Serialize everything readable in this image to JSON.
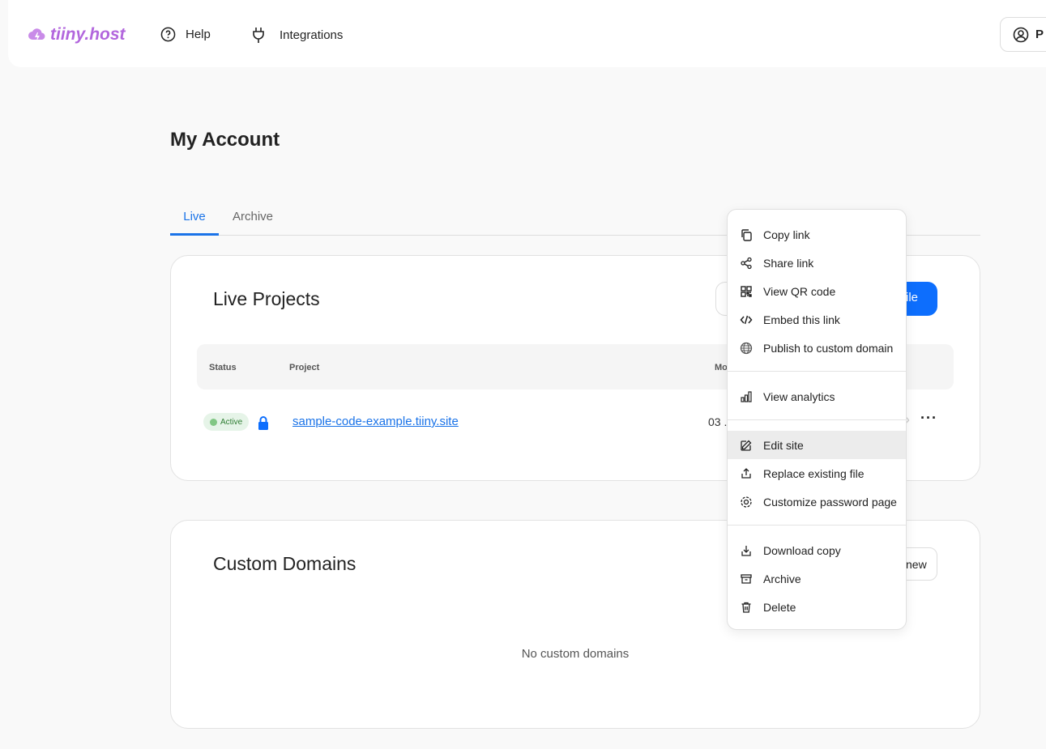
{
  "header": {
    "logo": "tiiny.host",
    "nav": [
      {
        "label": "Help",
        "icon": "help-circle-icon"
      },
      {
        "label": "Integrations",
        "icon": "plug-icon"
      }
    ],
    "profile_initial": "P"
  },
  "page_title": "My Account",
  "tabs": [
    {
      "label": "Live",
      "active": true
    },
    {
      "label": "Archive",
      "active": false
    }
  ],
  "live_projects": {
    "title": "Live Projects",
    "upload_button": "ile",
    "columns": [
      "Status",
      "Project",
      "Mo"
    ],
    "rows": [
      {
        "status": "Active",
        "locked": true,
        "project": "sample-code-example.tiiny.site",
        "modified": "03 ."
      }
    ]
  },
  "custom_domains": {
    "title": "Custom Domains",
    "add_button": "new",
    "empty": "No custom domains"
  },
  "menu": {
    "groups": [
      [
        {
          "label": "Copy link",
          "icon": "copy-icon"
        },
        {
          "label": "Share link",
          "icon": "share-icon"
        },
        {
          "label": "View QR code",
          "icon": "qr-code-icon"
        },
        {
          "label": "Embed this link",
          "icon": "code-icon"
        },
        {
          "label": "Publish to custom domain",
          "icon": "globe-icon"
        }
      ],
      [
        {
          "label": "View analytics",
          "icon": "bar-chart-icon"
        }
      ],
      [
        {
          "label": "Edit site",
          "icon": "edit-icon",
          "highlighted": true
        },
        {
          "label": "Replace existing file",
          "icon": "upload-icon"
        },
        {
          "label": "Customize password page",
          "icon": "gear-icon"
        }
      ],
      [
        {
          "label": "Download copy",
          "icon": "download-icon"
        },
        {
          "label": "Archive",
          "icon": "archive-icon"
        },
        {
          "label": "Delete",
          "icon": "trash-icon"
        }
      ]
    ]
  },
  "colors": {
    "brand": "#b266dd",
    "accent": "#0d6efd",
    "active_badge": "#e6f4e8"
  }
}
